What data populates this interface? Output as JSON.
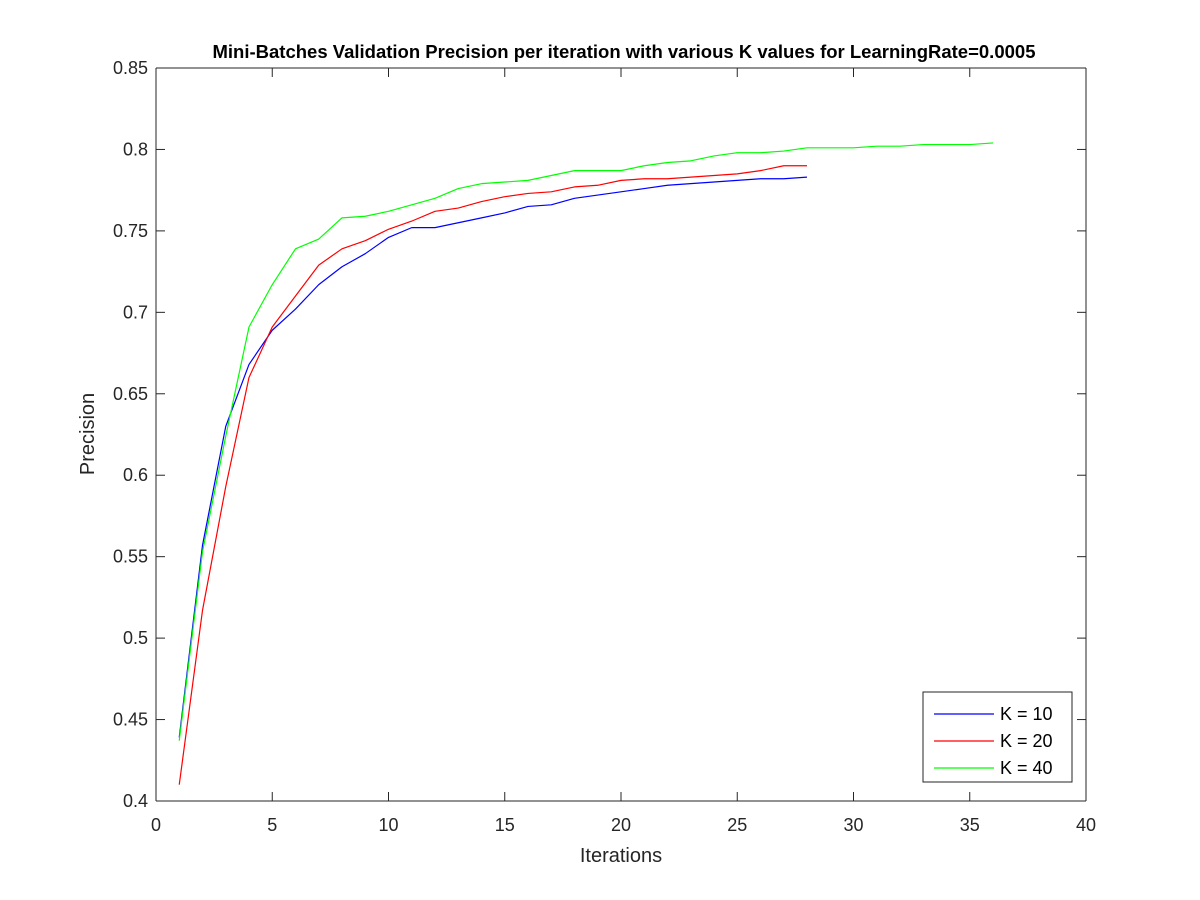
{
  "chart_data": {
    "type": "line",
    "title": "Mini-Batches Validation Precision per iteration with various K values for LearningRate=0.0005",
    "xlabel": "Iterations",
    "ylabel": "Precision",
    "xlim": [
      0,
      40
    ],
    "ylim": [
      0.4,
      0.85
    ],
    "xticks": [
      0,
      5,
      10,
      15,
      20,
      25,
      30,
      35,
      40
    ],
    "xtick_labels": [
      "0",
      "5",
      "10",
      "15",
      "20",
      "25",
      "30",
      "35",
      "40"
    ],
    "yticks": [
      0.4,
      0.45,
      0.5,
      0.55,
      0.6,
      0.65,
      0.7,
      0.75,
      0.8,
      0.85
    ],
    "ytick_labels": [
      "0.4",
      "0.45",
      "0.5",
      "0.55",
      "0.6",
      "0.65",
      "0.7",
      "0.75",
      "0.8",
      "0.85"
    ],
    "grid": false,
    "legend_position": "bottom-right",
    "series": [
      {
        "name": "K = 10",
        "color": "#0000ff",
        "x": [
          1,
          2,
          3,
          4,
          5,
          6,
          7,
          8,
          9,
          10,
          11,
          12,
          13,
          14,
          15,
          16,
          17,
          18,
          19,
          20,
          21,
          22,
          23,
          24,
          25,
          26,
          27,
          28
        ],
        "y": [
          0.439,
          0.557,
          0.63,
          0.668,
          0.689,
          0.702,
          0.717,
          0.728,
          0.736,
          0.746,
          0.752,
          0.752,
          0.755,
          0.758,
          0.761,
          0.765,
          0.766,
          0.77,
          0.772,
          0.774,
          0.776,
          0.778,
          0.779,
          0.78,
          0.781,
          0.782,
          0.782,
          0.783
        ]
      },
      {
        "name": "K = 20",
        "color": "#ff0000",
        "x": [
          1,
          2,
          3,
          4,
          5,
          6,
          7,
          8,
          9,
          10,
          11,
          12,
          13,
          14,
          15,
          16,
          17,
          18,
          19,
          20,
          21,
          22,
          23,
          24,
          25,
          26,
          27,
          28
        ],
        "y": [
          0.41,
          0.517,
          0.593,
          0.66,
          0.691,
          0.71,
          0.729,
          0.739,
          0.744,
          0.751,
          0.756,
          0.762,
          0.764,
          0.768,
          0.771,
          0.773,
          0.774,
          0.777,
          0.778,
          0.781,
          0.782,
          0.782,
          0.783,
          0.784,
          0.785,
          0.787,
          0.79,
          0.79
        ]
      },
      {
        "name": "K = 40",
        "color": "#00ff00",
        "x": [
          1,
          2,
          3,
          4,
          5,
          6,
          7,
          8,
          9,
          10,
          11,
          12,
          13,
          14,
          15,
          16,
          17,
          18,
          19,
          20,
          21,
          22,
          23,
          24,
          25,
          26,
          27,
          28,
          29,
          30,
          31,
          32,
          33,
          34,
          35,
          36
        ],
        "y": [
          0.437,
          0.553,
          0.624,
          0.691,
          0.717,
          0.739,
          0.745,
          0.758,
          0.759,
          0.762,
          0.766,
          0.77,
          0.776,
          0.779,
          0.78,
          0.781,
          0.784,
          0.787,
          0.787,
          0.787,
          0.79,
          0.792,
          0.793,
          0.796,
          0.798,
          0.798,
          0.799,
          0.801,
          0.801,
          0.801,
          0.802,
          0.802,
          0.803,
          0.803,
          0.803,
          0.804
        ]
      }
    ]
  }
}
